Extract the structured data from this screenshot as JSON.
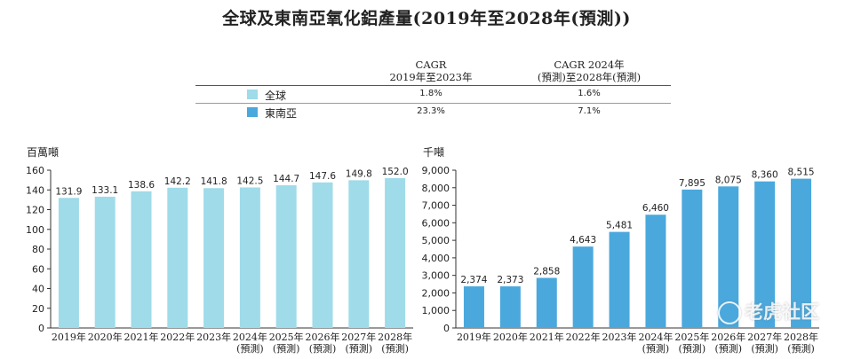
{
  "title": "全球及東南亞氧化鋁產量(2019年至2028年(預測))",
  "cagr_table": {
    "col1_line1": "CAGR",
    "col1_line2": "2019年至2023年",
    "col2_line1": "CAGR 2024年",
    "col2_line2": "(預測)至2028年(預測)",
    "rows": [
      {
        "label": "全球",
        "swatch": "#9fdbe9",
        "cagr1": "1.8%",
        "cagr2": "1.6%"
      },
      {
        "label": "東南亞",
        "swatch": "#4aa8dd",
        "cagr1": "23.3%",
        "cagr2": "7.1%"
      }
    ]
  },
  "left_unit": "百萬噸",
  "right_unit": "千噸",
  "watermark": "老虎社区",
  "chart_data": [
    {
      "type": "bar",
      "color": "#9fdbe9",
      "categories": [
        [
          "2019年"
        ],
        [
          "2020年"
        ],
        [
          "2021年"
        ],
        [
          "2022年"
        ],
        [
          "2023年"
        ],
        [
          "2024年",
          "(預測)"
        ],
        [
          "2025年",
          "(預測)"
        ],
        [
          "2026年",
          "(預測)"
        ],
        [
          "2027年",
          "(預測)"
        ],
        [
          "2028年",
          "(預測)"
        ]
      ],
      "values": [
        131.9,
        133.1,
        138.6,
        142.2,
        141.8,
        142.5,
        144.7,
        147.6,
        149.8,
        152.0
      ],
      "value_labels": [
        "131.9",
        "133.1",
        "138.6",
        "142.2",
        "141.8",
        "142.5",
        "144.7",
        "147.6",
        "149.8",
        "152.0"
      ],
      "ylim": [
        0,
        160
      ],
      "yticks": [
        0,
        20,
        40,
        60,
        80,
        100,
        120,
        140,
        160
      ],
      "ytick_labels": [
        "0",
        "20",
        "40",
        "60",
        "80",
        "100",
        "120",
        "140",
        "160"
      ]
    },
    {
      "type": "bar",
      "color": "#4aa8dd",
      "categories": [
        [
          "2019年"
        ],
        [
          "2020年"
        ],
        [
          "2021年"
        ],
        [
          "2022年"
        ],
        [
          "2023年"
        ],
        [
          "2024年",
          "(預測)"
        ],
        [
          "2025年",
          "(預測)"
        ],
        [
          "2026年",
          "(預測)"
        ],
        [
          "2027年",
          "(預測)"
        ],
        [
          "2028年",
          "(預測)"
        ]
      ],
      "values": [
        2374,
        2373,
        2858,
        4643,
        5481,
        6460,
        7895,
        8075,
        8360,
        8515
      ],
      "value_labels": [
        "2,374",
        "2,373",
        "2,858",
        "4,643",
        "5,481",
        "6,460",
        "7,895",
        "8,075",
        "8,360",
        "8,515"
      ],
      "ylim": [
        0,
        9000
      ],
      "yticks": [
        0,
        1000,
        2000,
        3000,
        4000,
        5000,
        6000,
        7000,
        8000,
        9000
      ],
      "ytick_labels": [
        "0",
        "1,000",
        "2,000",
        "3,000",
        "4,000",
        "5,000",
        "6,000",
        "7,000",
        "8,000",
        "9,000"
      ]
    }
  ]
}
